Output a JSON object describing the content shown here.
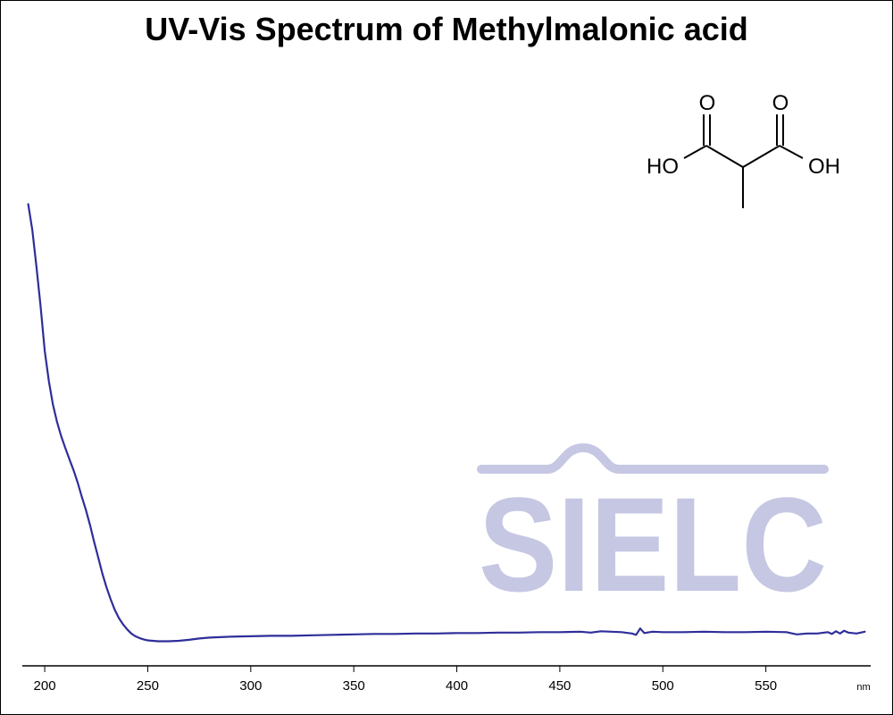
{
  "colors": {
    "line": "#2e2e9a",
    "axis": "#000000",
    "watermark": "#c5c7e3",
    "background": "#ffffff"
  },
  "molecule": {
    "labels": [
      "O",
      "O",
      "HO",
      "OH"
    ]
  },
  "watermark": {
    "text": "SIELC"
  },
  "chart_data": {
    "type": "line",
    "title": "UV-Vis Spectrum of Methylmalonic acid",
    "xlabel": "",
    "ylabel": "",
    "x_unit": "nm",
    "xlim": [
      190,
      600
    ],
    "ylim": [
      0,
      1.0
    ],
    "x_ticks": [
      200,
      250,
      300,
      350,
      400,
      450,
      500,
      550
    ],
    "grid": false,
    "legend": "none",
    "series": [
      {
        "x": [
          192,
          194,
          196,
          198,
          200,
          202,
          204,
          206,
          208,
          210,
          212,
          214,
          216,
          218,
          220,
          222,
          224,
          226,
          228,
          230,
          232,
          234,
          236,
          238,
          240,
          242,
          244,
          246,
          248,
          250,
          255,
          260,
          265,
          270,
          275,
          280,
          285,
          290,
          300,
          310,
          320,
          330,
          340,
          350,
          360,
          370,
          380,
          390,
          400,
          410,
          420,
          430,
          440,
          450,
          460,
          465,
          470,
          480,
          485,
          487,
          489,
          491,
          495,
          500,
          510,
          520,
          530,
          540,
          550,
          560,
          565,
          570,
          575,
          580,
          582,
          584,
          586,
          588,
          590,
          594,
          598
        ],
        "y": [
          0.962,
          0.905,
          0.825,
          0.737,
          0.64,
          0.574,
          0.522,
          0.484,
          0.453,
          0.427,
          0.402,
          0.378,
          0.351,
          0.32,
          0.291,
          0.258,
          0.221,
          0.186,
          0.151,
          0.121,
          0.095,
          0.072,
          0.054,
          0.04,
          0.029,
          0.02,
          0.014,
          0.01,
          0.007,
          0.005,
          0.003,
          0.003,
          0.004,
          0.006,
          0.009,
          0.011,
          0.012,
          0.013,
          0.014,
          0.015,
          0.015,
          0.016,
          0.017,
          0.018,
          0.019,
          0.019,
          0.02,
          0.02,
          0.021,
          0.021,
          0.022,
          0.022,
          0.023,
          0.023,
          0.024,
          0.022,
          0.025,
          0.023,
          0.02,
          0.017,
          0.031,
          0.021,
          0.024,
          0.023,
          0.023,
          0.024,
          0.023,
          0.023,
          0.024,
          0.023,
          0.018,
          0.02,
          0.02,
          0.023,
          0.019,
          0.025,
          0.02,
          0.026,
          0.022,
          0.02,
          0.024
        ]
      }
    ]
  }
}
